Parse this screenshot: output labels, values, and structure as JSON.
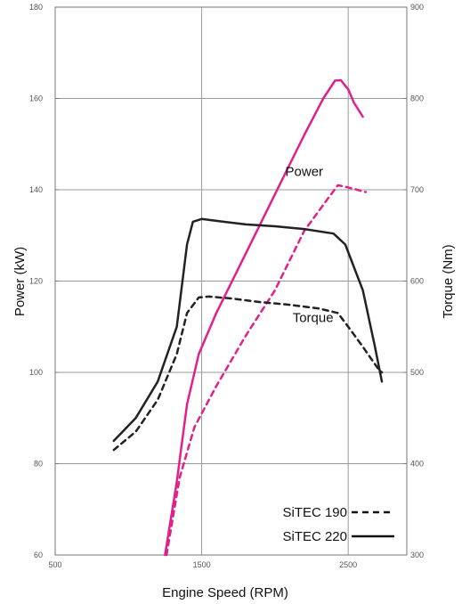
{
  "chart_data": {
    "type": "line",
    "title": "",
    "xlabel": "Engine Speed (RPM)",
    "ylabel": "Power (kW)",
    "y2label": "Torque (Nm)",
    "xlim": [
      500,
      2900
    ],
    "ylim": [
      60,
      180
    ],
    "y2lim": [
      300,
      900
    ],
    "xticks": [
      "500",
      "1500",
      "2500"
    ],
    "xtick_values": [
      500,
      1500,
      2500
    ],
    "yticks": [
      "60",
      "80",
      "100",
      "120",
      "140",
      "160",
      "180"
    ],
    "ytick_values": [
      60,
      80,
      100,
      120,
      140,
      160,
      180
    ],
    "y2ticks": [
      "300",
      "400",
      "500",
      "600",
      "700",
      "800",
      "900"
    ],
    "y2tick_values": [
      300,
      400,
      500,
      600,
      700,
      800,
      900
    ],
    "grid": true,
    "annotations": [
      {
        "text": "Power",
        "x": 2200,
        "y": 144,
        "axis": "left"
      },
      {
        "text": "Torque",
        "x": 2260,
        "y": 112,
        "axis": "left"
      }
    ],
    "legend": {
      "placement": "bottom-right",
      "entries": [
        {
          "label": "SiTEC 190",
          "style": "dashed"
        },
        {
          "label": "SiTEC 220",
          "style": "solid"
        }
      ]
    },
    "colors": {
      "power": "#e0218a",
      "torque": "#222222",
      "grid": "#999999"
    },
    "series": [
      {
        "name": "SiTEC 220",
        "quantity": "power",
        "axis": "left",
        "style": "solid",
        "color": "#e0218a",
        "points": [
          [
            1250,
            60
          ],
          [
            1330,
            76
          ],
          [
            1400,
            93
          ],
          [
            1480,
            104
          ],
          [
            1600,
            113
          ],
          [
            1800,
            126
          ],
          [
            2000,
            139
          ],
          [
            2200,
            152
          ],
          [
            2330,
            160
          ],
          [
            2410,
            163.9
          ],
          [
            2450,
            164
          ],
          [
            2500,
            162
          ],
          [
            2540,
            159
          ],
          [
            2600,
            156
          ]
        ]
      },
      {
        "name": "SiTEC 190",
        "quantity": "power",
        "axis": "left",
        "style": "dashed",
        "color": "#e0218a",
        "points": [
          [
            1260,
            60
          ],
          [
            1350,
            77
          ],
          [
            1450,
            88
          ],
          [
            1600,
            97
          ],
          [
            1800,
            108
          ],
          [
            2000,
            118
          ],
          [
            2200,
            131
          ],
          [
            2360,
            138
          ],
          [
            2430,
            141
          ],
          [
            2500,
            140.5
          ],
          [
            2620,
            139.5
          ]
        ]
      },
      {
        "name": "SiTEC 220",
        "quantity": "torque",
        "axis": "right",
        "style": "solid",
        "color": "#222222",
        "points": [
          [
            900,
            425
          ],
          [
            1050,
            450
          ],
          [
            1200,
            490
          ],
          [
            1330,
            550
          ],
          [
            1400,
            640
          ],
          [
            1440,
            665
          ],
          [
            1500,
            668
          ],
          [
            1600,
            666
          ],
          [
            1800,
            662
          ],
          [
            2000,
            660
          ],
          [
            2200,
            657
          ],
          [
            2400,
            652
          ],
          [
            2480,
            640
          ],
          [
            2600,
            590
          ],
          [
            2680,
            530
          ],
          [
            2730,
            490
          ]
        ]
      },
      {
        "name": "SiTEC 190",
        "quantity": "torque",
        "axis": "right",
        "style": "dashed",
        "color": "#222222",
        "points": [
          [
            900,
            415
          ],
          [
            1050,
            435
          ],
          [
            1200,
            470
          ],
          [
            1330,
            520
          ],
          [
            1400,
            565
          ],
          [
            1480,
            582
          ],
          [
            1550,
            583
          ],
          [
            1700,
            581
          ],
          [
            1900,
            577
          ],
          [
            2100,
            574
          ],
          [
            2300,
            570
          ],
          [
            2430,
            565
          ],
          [
            2500,
            550
          ],
          [
            2600,
            528
          ],
          [
            2700,
            505
          ],
          [
            2730,
            500
          ]
        ]
      }
    ]
  }
}
